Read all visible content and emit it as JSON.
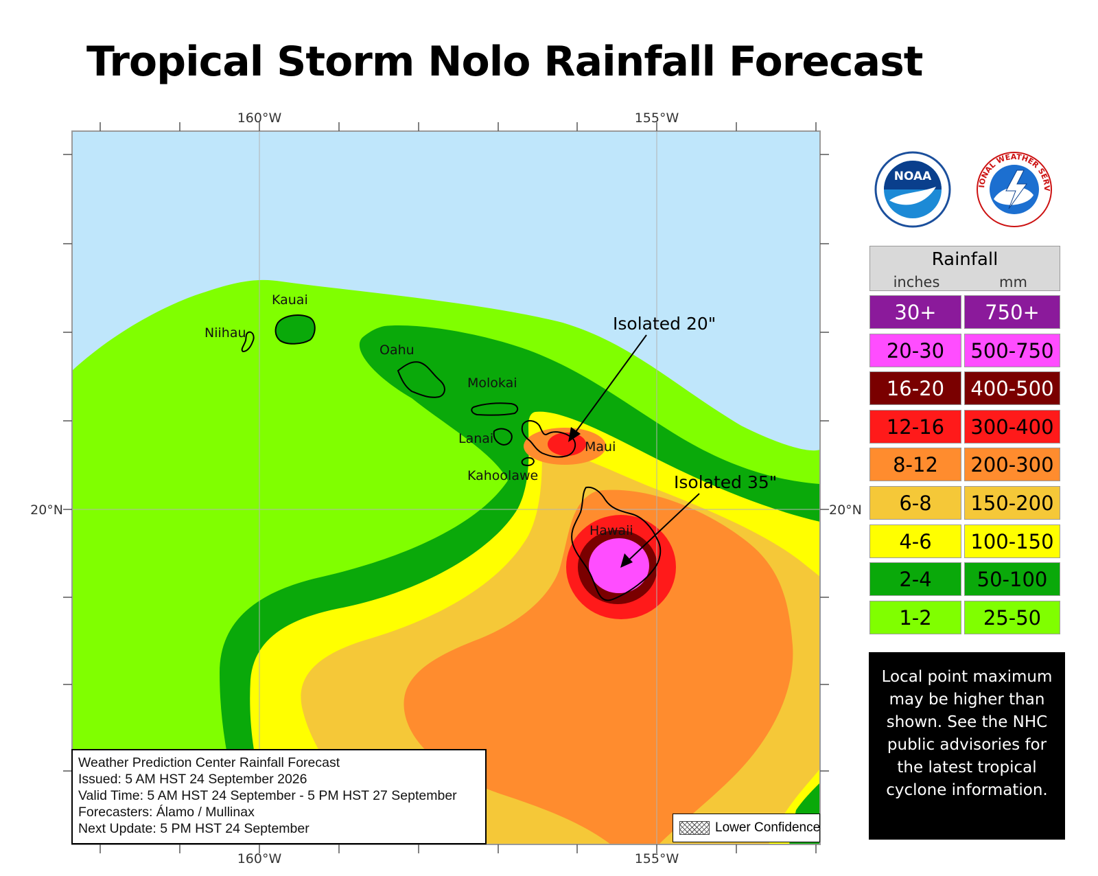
{
  "title": "Tropical Storm Nolo Rainfall Forecast",
  "axes": {
    "lon_top": [
      "160°W",
      "155°W"
    ],
    "lon_bottom": [
      "160°W",
      "155°W"
    ],
    "lat_left": "20°N",
    "lat_right": "20°N"
  },
  "islands": {
    "kauai": "Kauai",
    "niihau": "Niihau",
    "oahu": "Oahu",
    "molokai": "Molokai",
    "lanai": "Lanai",
    "maui": "Maui",
    "kahoolawe": "Kahoolawe",
    "hawaii": "Hawaii"
  },
  "annotations": {
    "isolated_maui": "Isolated 20\"",
    "isolated_hawaii": "Isolated 35\""
  },
  "legend": {
    "title": "Rainfall",
    "unit_in": "inches",
    "unit_mm": "mm",
    "items": [
      {
        "inches": "30+",
        "mm": "750+",
        "color": "#8b1a9b",
        "text_color": "#ffffff"
      },
      {
        "inches": "20-30",
        "mm": "500-750",
        "color": "#ff4dff",
        "text_color": "#000000"
      },
      {
        "inches": "16-20",
        "mm": "400-500",
        "color": "#7a0000",
        "text_color": "#ffffff"
      },
      {
        "inches": "12-16",
        "mm": "300-400",
        "color": "#ff1a1a",
        "text_color": "#000000"
      },
      {
        "inches": "8-12",
        "mm": "200-300",
        "color": "#ff8c2e",
        "text_color": "#000000"
      },
      {
        "inches": "6-8",
        "mm": "150-200",
        "color": "#f5c838",
        "text_color": "#000000"
      },
      {
        "inches": "4-6",
        "mm": "100-150",
        "color": "#ffff00",
        "text_color": "#000000"
      },
      {
        "inches": "2-4",
        "mm": "50-100",
        "color": "#0aa90a",
        "text_color": "#000000"
      },
      {
        "inches": "1-2",
        "mm": "25-50",
        "color": "#80ff00",
        "text_color": "#000000"
      }
    ]
  },
  "notice": "Local point maximum may be higher than shown. See the NHC public advisories for the latest tropical cyclone information.",
  "info": {
    "line1": "Weather Prediction Center Rainfall Forecast",
    "line2": "Issued: 5 AM HST 24 September 2026",
    "line3": "Valid Time: 5 AM HST 24 September - 5 PM HST 27 September",
    "line4": "Forecasters: Álamo / Mullinax",
    "line5": "Next Update: 5 PM HST 24 September"
  },
  "lower_confidence": "Lower Confidence",
  "logos": {
    "noaa": "NOAA",
    "nws_ring": "NATIONAL WEATHER SERVICE"
  },
  "colors": {
    "ocean": "#bfe6fb",
    "band_1_2": "#80ff00",
    "band_2_4": "#0aa90a",
    "band_4_6": "#ffff00",
    "band_6_8": "#f5c838",
    "band_8_12": "#ff8c2e",
    "band_12_16": "#ff1a1a",
    "band_16_20": "#7a0000",
    "band_20_30": "#ff4dff"
  }
}
